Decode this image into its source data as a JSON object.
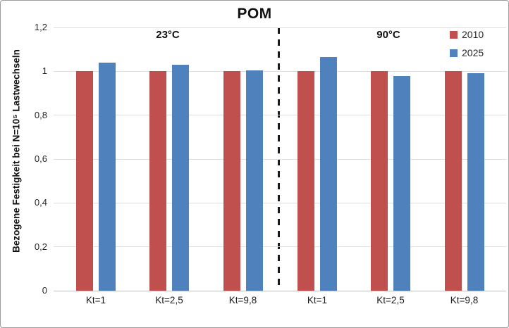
{
  "title": "POM",
  "y_axis": {
    "label": "Bezogene Festigkeit bei N=10⁵ Lastwechseln",
    "ticks": [
      "1,2",
      "1",
      "0,8",
      "0,6",
      "0,4",
      "0,2",
      "0"
    ],
    "min": 0,
    "max": 1.2,
    "step": 0.2
  },
  "legend": [
    {
      "label": "2010",
      "color": "#C0504D"
    },
    {
      "label": "2025",
      "color": "#4F81BD"
    }
  ],
  "chart_data": {
    "type": "bar",
    "title": "POM",
    "ylabel": "Bezogene Festigkeit bei N=10⁵ Lastwechseln",
    "ylim": [
      0,
      1.2
    ],
    "grid": true,
    "legend_position": "top-right",
    "group_labels": [
      "23°C",
      "90°C"
    ],
    "group_separator": "vertical dashed line between 23°C and 90°C sections",
    "categories": [
      "Kt=1",
      "Kt=2,5",
      "Kt=9,8",
      "Kt=1",
      "Kt=2,5",
      "Kt=9,8"
    ],
    "category_groups": [
      "23°C",
      "23°C",
      "23°C",
      "90°C",
      "90°C",
      "90°C"
    ],
    "series": [
      {
        "name": "2010",
        "color": "#C0504D",
        "values": [
          1.0,
          1.0,
          1.0,
          1.0,
          1.0,
          1.0
        ]
      },
      {
        "name": "2025",
        "color": "#4F81BD",
        "values": [
          1.04,
          1.03,
          1.005,
          1.065,
          0.98,
          0.99
        ]
      }
    ]
  }
}
